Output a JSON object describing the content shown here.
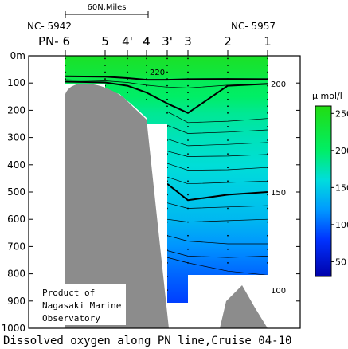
{
  "chart_data": {
    "type": "heatmap",
    "title": "Dissolved oxygen along PN line,Cruise 04-10",
    "scale_bar": "60N.Miles",
    "station_left_id": "NC- 5942",
    "station_right_id": "NC- 5957",
    "stations": [
      "PN- 6",
      "5",
      "4'",
      "4",
      "3'",
      "3",
      "2",
      "1"
    ],
    "y_unit": "m",
    "y_range": [
      0,
      1000
    ],
    "y_ticks": [
      0,
      100,
      200,
      300,
      400,
      500,
      600,
      700,
      800,
      900,
      1000
    ],
    "colorbar": {
      "unit": "μ mol/l",
      "range": [
        30,
        260
      ],
      "ticks": [
        50,
        100,
        150,
        200,
        250
      ],
      "stops": [
        {
          "value": 30,
          "color": "#0000aa"
        },
        {
          "value": 80,
          "color": "#0033ff"
        },
        {
          "value": 120,
          "color": "#0099ff"
        },
        {
          "value": 160,
          "color": "#00dddd"
        },
        {
          "value": 200,
          "color": "#00ee66"
        },
        {
          "value": 260,
          "color": "#22dd11"
        }
      ]
    },
    "contours": [
      {
        "label": "220",
        "values": [
          75,
          77,
          82,
          88,
          88,
          86,
          85,
          86
        ]
      },
      {
        "label": "",
        "values": [
          88,
          92,
          98,
          108,
          115,
          118,
          108,
          104
        ]
      },
      {
        "label": "200",
        "values": [
          95,
          98,
          110,
          135,
          175,
          210,
          110,
          103
        ]
      },
      {
        "label": "",
        "values": [
          null,
          null,
          null,
          null,
          205,
          245,
          240,
          230
        ]
      },
      {
        "label": "",
        "values": [
          null,
          null,
          null,
          null,
          255,
          285,
          280,
          272
        ]
      },
      {
        "label": "",
        "values": [
          null,
          null,
          null,
          null,
          305,
          330,
          325,
          318
        ]
      },
      {
        "label": "",
        "values": [
          null,
          null,
          null,
          null,
          350,
          370,
          368,
          362
        ]
      },
      {
        "label": "",
        "values": [
          null,
          null,
          null,
          null,
          395,
          420,
          418,
          410
        ]
      },
      {
        "label": "",
        "values": [
          null,
          null,
          null,
          null,
          445,
          470,
          465,
          460
        ]
      },
      {
        "label": "150",
        "values": [
          null,
          null,
          null,
          null,
          470,
          530,
          510,
          500
        ]
      },
      {
        "label": "",
        "values": [
          null,
          null,
          null,
          null,
          540,
          560,
          555,
          550
        ]
      },
      {
        "label": "",
        "values": [
          null,
          null,
          null,
          null,
          600,
          610,
          605,
          600
        ]
      },
      {
        "label": "",
        "values": [
          null,
          null,
          null,
          null,
          660,
          680,
          690,
          690
        ]
      },
      {
        "label": "",
        "values": [
          null,
          null,
          null,
          null,
          715,
          735,
          740,
          735
        ]
      },
      {
        "label": "",
        "values": [
          null,
          null,
          null,
          null,
          740,
          760,
          790,
          805
        ]
      },
      {
        "label": "100",
        "values": [
          null,
          null,
          null,
          null,
          null,
          null,
          810,
          860
        ]
      }
    ],
    "annotation": [
      "Product of",
      "Nagasaki Marine",
      "Observatory"
    ]
  }
}
